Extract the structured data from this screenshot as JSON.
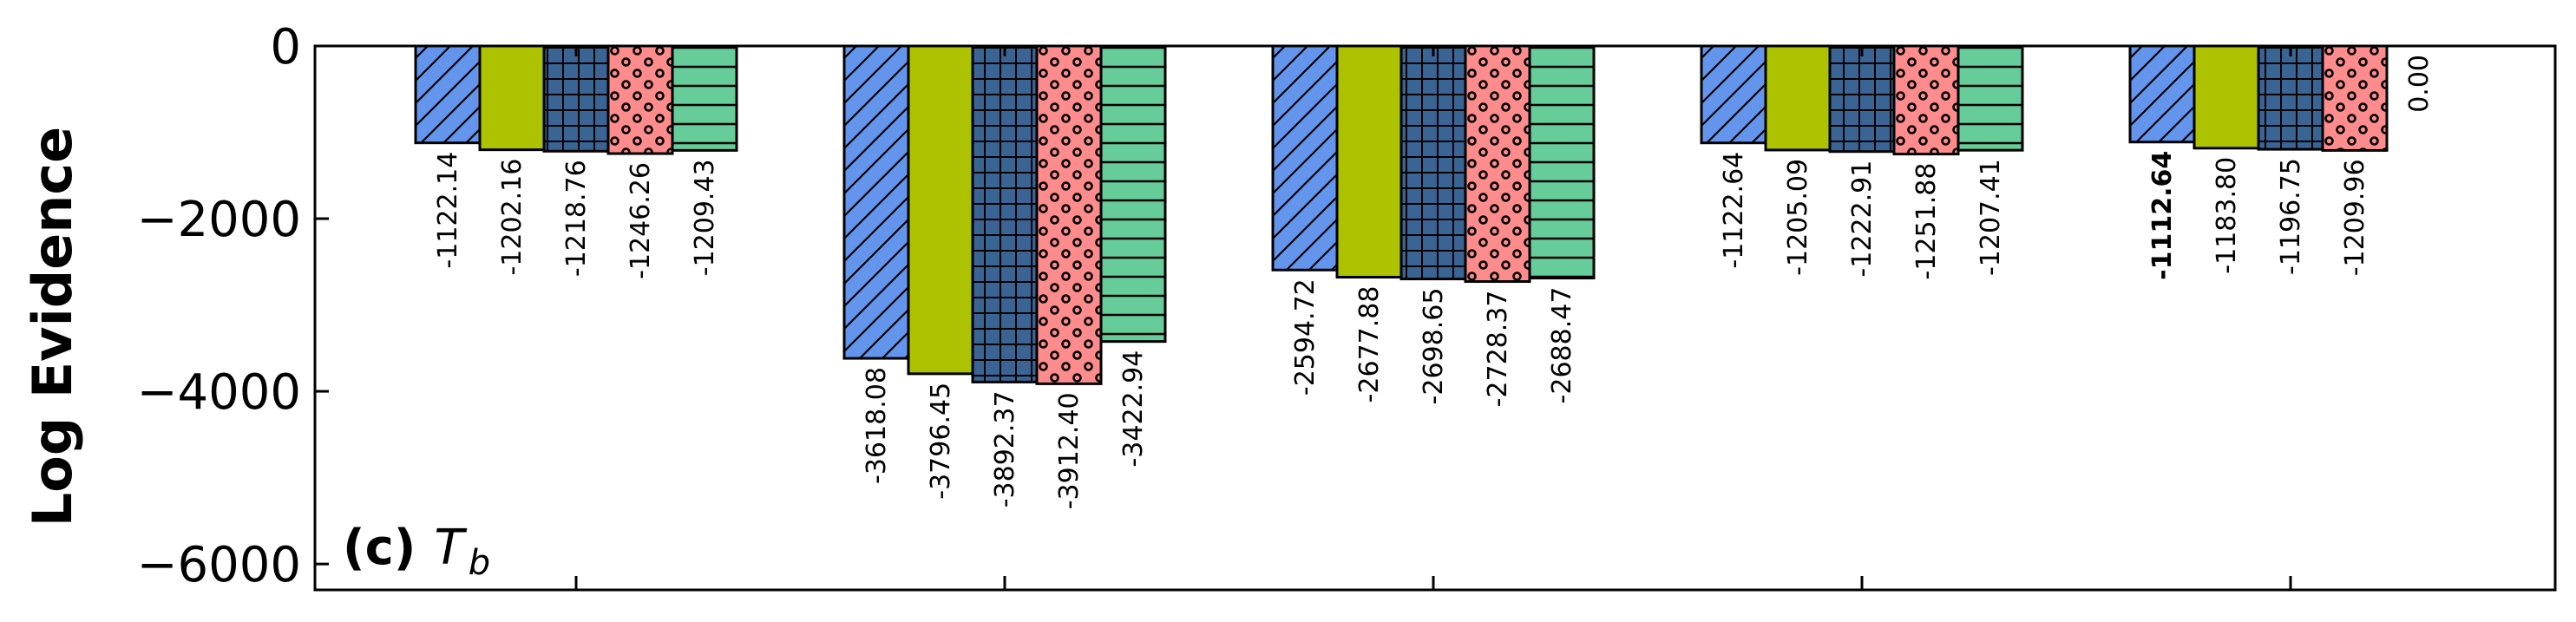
{
  "chart_data": {
    "type": "bar",
    "panel_label": "(c)",
    "panel_symbol": "T",
    "panel_subscript": "b",
    "ylabel": "Log Evidence",
    "ylim": [
      -6300,
      0
    ],
    "yticks": [
      0,
      -2000,
      -4000,
      -6000
    ],
    "ytick_labels": [
      "0",
      "−2000",
      "−4000",
      "−6000"
    ],
    "group_count": 5,
    "series": [
      {
        "color": "#6495ED",
        "pattern": "diagonal-hatch",
        "values": [
          -1122.14,
          -3618.08,
          -2594.72,
          -1122.64,
          -1112.64
        ]
      },
      {
        "color": "#ADC300",
        "pattern": "solid",
        "values": [
          -1202.16,
          -3796.45,
          -2677.88,
          -1205.09,
          -1183.8
        ]
      },
      {
        "color": "#3A6494",
        "pattern": "grid",
        "values": [
          -1218.76,
          -3892.37,
          -2698.65,
          -1222.91,
          -1196.75
        ]
      },
      {
        "color": "#FF8C8C",
        "pattern": "dots",
        "values": [
          -1246.26,
          -3912.4,
          -2728.37,
          -1251.88,
          -1209.96
        ]
      },
      {
        "color": "#66CC99",
        "pattern": "horizontal-lines",
        "values": [
          -1209.43,
          -3422.94,
          -2688.47,
          -1207.41,
          0.0
        ]
      }
    ],
    "data_labels": [
      [
        "-1122.14",
        "-3618.08",
        "-2594.72",
        "-1122.64",
        "-1112.64"
      ],
      [
        "-1202.16",
        "-3796.45",
        "-2677.88",
        "-1205.09",
        "-1183.80"
      ],
      [
        "-1218.76",
        "-3892.37",
        "-2698.65",
        "-1222.91",
        "-1196.75"
      ],
      [
        "-1246.26",
        "-3912.40",
        "-2728.37",
        "-1251.88",
        "-1209.96"
      ],
      [
        "-1209.43",
        "-3422.94",
        "-2688.47",
        "-1207.41",
        "0.00"
      ]
    ],
    "bold_labels": [
      [
        0,
        4
      ]
    ]
  }
}
